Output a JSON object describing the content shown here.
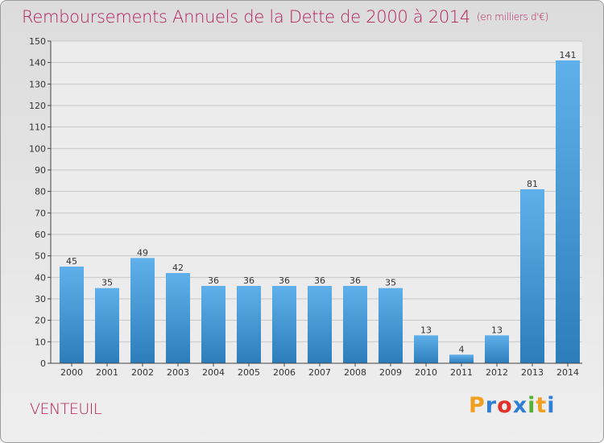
{
  "title": "Remboursements Annuels de la Dette de 2000 à 2014",
  "unit_note": "(en milliers d'€)",
  "commune": "VENTEUIL",
  "logo": {
    "letters": [
      "P",
      "r",
      "o",
      "x",
      "i",
      "t",
      "i"
    ],
    "colors": [
      "#f0a01e",
      "#2f7fd6",
      "#e0322b",
      "#2f7fd6",
      "#56b032",
      "#f0a01e",
      "#2f7fd6"
    ]
  },
  "colors": {
    "accent": "#b5225a",
    "bar_top": "#5fb0ea",
    "bar_bottom": "#2d7dbb"
  },
  "chart_data": {
    "type": "bar",
    "title": "Remboursements Annuels de la Dette de 2000 à 2014",
    "categories": [
      "2000",
      "2001",
      "2002",
      "2003",
      "2004",
      "2005",
      "2006",
      "2007",
      "2008",
      "2009",
      "2010",
      "2011",
      "2012",
      "2013",
      "2014"
    ],
    "values": [
      45,
      35,
      49,
      42,
      36,
      36,
      36,
      36,
      36,
      35,
      13,
      4,
      13,
      81,
      141
    ],
    "ylim": [
      0,
      150
    ],
    "yticks": [
      0,
      10,
      20,
      30,
      40,
      50,
      60,
      70,
      80,
      90,
      100,
      110,
      120,
      130,
      140,
      150
    ],
    "grid": true
  }
}
